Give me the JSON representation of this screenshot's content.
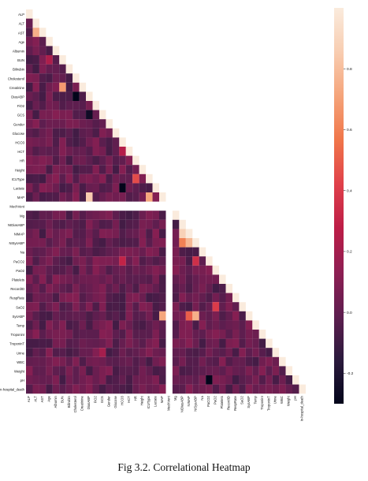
{
  "caption": "Fig 3.2. Correlational Heatmap",
  "chart_data": {
    "type": "heatmap",
    "variables": [
      "ALP",
      "ALT",
      "AST",
      "Age",
      "Albumin",
      "BUN",
      "Bilirubin",
      "Cholesterol",
      "Creatinine",
      "DiasABP",
      "FiO2",
      "GCS",
      "Gender",
      "Glucose",
      "HCO3",
      "HCT",
      "HR",
      "Height",
      "ICUType",
      "Lactate",
      "MAP",
      "MechVent",
      "Mg",
      "NIDiasABP",
      "NIMAP",
      "NISysABP",
      "Na",
      "PaCO2",
      "PaO2",
      "Platelets",
      "RecordID",
      "RespRate",
      "SaO2",
      "SysABP",
      "Temp",
      "TroponinI",
      "TroponinT",
      "Urine",
      "WBC",
      "Weight",
      "pH",
      "In-hospital_death"
    ],
    "mask": "upper-triangle",
    "diagonal": 1,
    "missing_rows": [
      "MechVent"
    ],
    "colorbar": {
      "ticks": [
        0.8,
        0.6,
        0.4,
        0.2,
        0.0,
        -0.2
      ],
      "min": -0.3,
      "max": 1.0,
      "colormap": "rocket"
    },
    "strong_correlations": [
      {
        "row": "AST",
        "col": "ALT",
        "value": 0.75
      },
      {
        "row": "BUN",
        "col": "Age",
        "value": 0.23
      },
      {
        "row": "Creatinine",
        "col": "BUN",
        "value": 0.68
      },
      {
        "row": "DiasABP",
        "col": "Cholesterol",
        "value": -0.3
      },
      {
        "row": "GCS",
        "col": "DiasABP",
        "value": -0.25
      },
      {
        "row": "HCT",
        "col": "HCO3",
        "value": 0.25
      },
      {
        "row": "ICUType",
        "col": "HR",
        "value": 0.45
      },
      {
        "row": "MAP",
        "col": "DiasABP",
        "value": 0.85
      },
      {
        "row": "MAP",
        "col": "ICUType",
        "value": 0.72
      },
      {
        "row": "Lactate",
        "col": "HCO3",
        "value": -0.45
      },
      {
        "row": "NIMAP",
        "col": "NIDiasABP",
        "value": 0.88
      },
      {
        "row": "NISysABP",
        "col": "NIDiasABP",
        "value": 0.6
      },
      {
        "row": "NISysABP",
        "col": "NIMAP",
        "value": 0.78
      },
      {
        "row": "PaCO2",
        "col": "HCO3",
        "value": 0.3
      },
      {
        "row": "PaCO2",
        "col": "NISysABP",
        "value": 0.35
      },
      {
        "row": "SaO2",
        "col": "PaO2",
        "value": 0.4
      },
      {
        "row": "SysABP",
        "col": "MAP",
        "value": 0.72
      },
      {
        "row": "SysABP",
        "col": "NIMAP",
        "value": 0.5
      },
      {
        "row": "SysABP",
        "col": "NISysABP",
        "value": 0.75
      },
      {
        "row": "TroponinT",
        "col": "Lactate",
        "value": 0.1
      },
      {
        "row": "pH",
        "col": "PaCO2",
        "value": -0.35
      },
      {
        "row": "Urine",
        "col": "GCS",
        "value": 0.2
      }
    ]
  },
  "colors": {
    "text": "#111111",
    "rocket": [
      "#03051a",
      "#2b1a3d",
      "#5e1e4f",
      "#8e1f53",
      "#bd1d47",
      "#e0414a",
      "#f0764a",
      "#f5a47a",
      "#f8cdb1",
      "#faebdd"
    ]
  }
}
